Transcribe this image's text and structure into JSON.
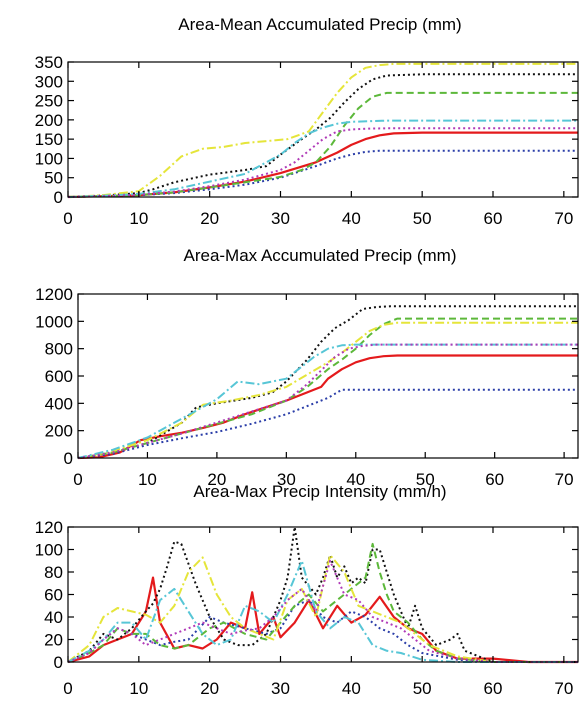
{
  "chart_data": [
    {
      "type": "line",
      "title": "Area-Mean Accumulated Precip (mm)",
      "xlabel": "",
      "ylabel": "",
      "xlim": [
        0,
        72
      ],
      "ylim": [
        0,
        350
      ],
      "xticks": [
        0,
        10,
        20,
        30,
        40,
        50,
        60,
        70
      ],
      "yticks": [
        0,
        50,
        100,
        150,
        200,
        250,
        300,
        350
      ],
      "grid": false,
      "series": [
        {
          "color": "#e41a1c",
          "dash": "solid",
          "x": [
            0,
            5,
            10,
            15,
            20,
            25,
            30,
            35,
            38,
            40,
            42,
            44,
            46,
            50,
            55,
            60,
            65,
            72
          ],
          "y": [
            0,
            2,
            5,
            12,
            25,
            40,
            62,
            90,
            115,
            135,
            150,
            160,
            165,
            167,
            167,
            167,
            167,
            167
          ]
        },
        {
          "color": "#2b3ea8",
          "dash": "dot",
          "x": [
            0,
            5,
            10,
            15,
            20,
            25,
            30,
            35,
            38,
            40,
            42,
            44,
            46,
            50,
            60,
            72
          ],
          "y": [
            0,
            2,
            5,
            10,
            20,
            32,
            50,
            80,
            100,
            110,
            117,
            120,
            120,
            120,
            120,
            120
          ]
        },
        {
          "color": "#111111",
          "dash": "dot",
          "x": [
            0,
            5,
            10,
            12,
            15,
            20,
            25,
            28,
            30,
            33,
            35,
            37,
            39,
            41,
            43,
            45,
            50,
            60,
            72
          ],
          "y": [
            0,
            4,
            10,
            20,
            38,
            58,
            70,
            80,
            110,
            150,
            175,
            205,
            245,
            280,
            305,
            315,
            318,
            318,
            318
          ]
        },
        {
          "color": "#5cb83a",
          "dash": "dash",
          "x": [
            0,
            5,
            10,
            15,
            20,
            25,
            30,
            33,
            35,
            37,
            39,
            41,
            43,
            45,
            47,
            50,
            60,
            72
          ],
          "y": [
            0,
            2,
            5,
            12,
            25,
            38,
            52,
            70,
            90,
            130,
            185,
            230,
            260,
            270,
            270,
            270,
            270,
            270
          ]
        },
        {
          "color": "#e5e53a",
          "dash": "dashdot",
          "x": [
            0,
            5,
            10,
            13,
            16,
            19,
            22,
            25,
            28,
            31,
            34,
            36,
            38,
            40,
            42,
            44,
            46,
            50,
            60,
            72
          ],
          "y": [
            0,
            5,
            15,
            55,
            105,
            125,
            130,
            140,
            145,
            150,
            170,
            220,
            270,
            310,
            335,
            342,
            345,
            345,
            345,
            345
          ]
        },
        {
          "color": "#57c6d6",
          "dash": "dashdot",
          "x": [
            0,
            5,
            10,
            15,
            20,
            25,
            28,
            30,
            32,
            34,
            36,
            38,
            40,
            45,
            50,
            60,
            72
          ],
          "y": [
            0,
            3,
            8,
            20,
            40,
            60,
            90,
            110,
            140,
            165,
            180,
            190,
            195,
            198,
            198,
            198,
            198
          ]
        },
        {
          "color": "#b03ab8",
          "dash": "dot",
          "x": [
            0,
            5,
            10,
            15,
            20,
            25,
            30,
            32,
            34,
            36,
            38,
            40,
            42,
            45,
            50,
            60,
            72
          ],
          "y": [
            0,
            2,
            6,
            14,
            28,
            45,
            70,
            90,
            120,
            150,
            170,
            175,
            177,
            178,
            178,
            178,
            178
          ]
        }
      ]
    },
    {
      "type": "line",
      "title": "Area-Max Accumulated Precip (mm)",
      "xlabel": "",
      "ylabel": "",
      "xlim": [
        0,
        72
      ],
      "ylim": [
        0,
        1200
      ],
      "xticks": [
        0,
        10,
        20,
        30,
        40,
        50,
        60,
        70
      ],
      "yticks": [
        0,
        200,
        400,
        600,
        800,
        1000,
        1200
      ],
      "grid": false,
      "series": [
        {
          "color": "#e41a1c",
          "dash": "solid",
          "x": [
            0,
            3,
            6,
            9,
            12,
            15,
            18,
            21,
            24,
            27,
            30,
            33,
            35,
            36,
            38,
            40,
            42,
            44,
            46,
            50,
            60,
            72
          ],
          "y": [
            0,
            5,
            40,
            130,
            160,
            185,
            220,
            260,
            320,
            370,
            420,
            480,
            520,
            580,
            650,
            700,
            730,
            745,
            750,
            750,
            750,
            750
          ]
        },
        {
          "color": "#2b3ea8",
          "dash": "dot",
          "x": [
            0,
            5,
            10,
            15,
            20,
            25,
            30,
            33,
            36,
            38,
            40,
            50,
            60,
            72
          ],
          "y": [
            0,
            30,
            95,
            145,
            190,
            250,
            320,
            380,
            440,
            500,
            500,
            500,
            500,
            500
          ]
        },
        {
          "color": "#111111",
          "dash": "dot",
          "x": [
            0,
            5,
            10,
            15,
            17,
            20,
            25,
            28,
            30,
            33,
            35,
            37,
            39,
            41,
            43,
            45,
            50,
            60,
            72
          ],
          "y": [
            0,
            40,
            110,
            260,
            370,
            400,
            440,
            480,
            560,
            720,
            850,
            950,
            1010,
            1090,
            1105,
            1110,
            1110,
            1110,
            1110
          ]
        },
        {
          "color": "#5cb83a",
          "dash": "dash",
          "x": [
            0,
            5,
            10,
            15,
            20,
            25,
            30,
            33,
            36,
            38,
            40,
            42,
            44,
            46,
            50,
            60,
            72
          ],
          "y": [
            0,
            40,
            110,
            180,
            250,
            320,
            420,
            520,
            650,
            720,
            800,
            900,
            980,
            1020,
            1020,
            1020,
            1020
          ]
        },
        {
          "color": "#e5e53a",
          "dash": "dashdot",
          "x": [
            0,
            5,
            10,
            15,
            18,
            22,
            26,
            30,
            34,
            36,
            38,
            40,
            42,
            44,
            46,
            50,
            60,
            72
          ],
          "y": [
            0,
            50,
            130,
            260,
            390,
            420,
            460,
            520,
            640,
            700,
            770,
            850,
            930,
            975,
            990,
            990,
            990,
            990
          ]
        },
        {
          "color": "#57c6d6",
          "dash": "dashdot",
          "x": [
            0,
            5,
            10,
            15,
            20,
            23,
            26,
            30,
            32,
            34,
            36,
            38,
            40,
            50,
            60,
            72
          ],
          "y": [
            0,
            60,
            150,
            290,
            430,
            560,
            540,
            580,
            660,
            740,
            800,
            825,
            830,
            830,
            830,
            830
          ]
        },
        {
          "color": "#b03ab8",
          "dash": "dot",
          "x": [
            0,
            5,
            10,
            15,
            20,
            25,
            30,
            33,
            35,
            37,
            39,
            41,
            43,
            50,
            60,
            72
          ],
          "y": [
            0,
            40,
            110,
            180,
            260,
            340,
            420,
            540,
            640,
            740,
            800,
            820,
            830,
            830,
            830,
            830
          ]
        }
      ]
    },
    {
      "type": "line",
      "title": "Area-Max Precip Intensity (mm/h)",
      "xlabel": "",
      "ylabel": "",
      "xlim": [
        0,
        72
      ],
      "ylim": [
        0,
        120
      ],
      "xticks": [
        0,
        10,
        20,
        30,
        40,
        50,
        60,
        70
      ],
      "yticks": [
        0,
        20,
        40,
        60,
        80,
        100,
        120
      ],
      "grid": false,
      "series": [
        {
          "color": "#e41a1c",
          "dash": "solid",
          "x": [
            0,
            3,
            5,
            7,
            9,
            11,
            12,
            13,
            15,
            17,
            19,
            21,
            23,
            25,
            26,
            27,
            29,
            30,
            32,
            34,
            36,
            38,
            40,
            42,
            44,
            46,
            48,
            50,
            52,
            55,
            60,
            65,
            72
          ],
          "y": [
            0,
            5,
            15,
            20,
            25,
            45,
            75,
            35,
            12,
            15,
            12,
            20,
            35,
            30,
            62,
            25,
            40,
            22,
            35,
            55,
            30,
            50,
            35,
            42,
            58,
            40,
            30,
            25,
            10,
            3,
            3,
            0,
            0
          ]
        },
        {
          "color": "#2b3ea8",
          "dash": "dot",
          "x": [
            0,
            3,
            5,
            7,
            9,
            11,
            13,
            15,
            17,
            20,
            22,
            25,
            28,
            30,
            32,
            34,
            36,
            38,
            40,
            42,
            44,
            46,
            48,
            50,
            55,
            60,
            65,
            72
          ],
          "y": [
            0,
            8,
            20,
            30,
            25,
            20,
            15,
            18,
            20,
            40,
            35,
            30,
            25,
            30,
            50,
            55,
            40,
            35,
            45,
            40,
            30,
            25,
            15,
            8,
            2,
            0,
            0,
            0
          ]
        },
        {
          "color": "#111111",
          "dash": "dot",
          "x": [
            0,
            3,
            5,
            7,
            9,
            11,
            12,
            13,
            14,
            15,
            16,
            18,
            20,
            22,
            24,
            26,
            28,
            30,
            31,
            32,
            33,
            35,
            36,
            37,
            38,
            39,
            40,
            41,
            42,
            43,
            44,
            46,
            48,
            49,
            50,
            52,
            54,
            55,
            56,
            58,
            60,
            65,
            72
          ],
          "y": [
            0,
            10,
            25,
            20,
            30,
            45,
            52,
            65,
            85,
            107,
            105,
            70,
            40,
            20,
            15,
            15,
            25,
            55,
            75,
            120,
            75,
            60,
            75,
            95,
            75,
            85,
            70,
            75,
            70,
            100,
            100,
            60,
            30,
            50,
            30,
            15,
            20,
            25,
            10,
            5,
            0,
            0,
            0
          ]
        },
        {
          "color": "#5cb83a",
          "dash": "dash",
          "x": [
            0,
            3,
            5,
            7,
            9,
            11,
            13,
            15,
            17,
            20,
            22,
            25,
            28,
            30,
            32,
            34,
            36,
            38,
            40,
            42,
            43,
            44,
            45,
            46,
            48,
            50,
            52,
            55,
            60,
            65,
            72
          ],
          "y": [
            0,
            8,
            15,
            30,
            25,
            25,
            15,
            12,
            15,
            30,
            35,
            25,
            20,
            35,
            50,
            60,
            45,
            55,
            65,
            75,
            105,
            80,
            60,
            45,
            35,
            20,
            10,
            3,
            0,
            0,
            0
          ]
        },
        {
          "color": "#e5e53a",
          "dash": "dashdot",
          "x": [
            0,
            3,
            5,
            7,
            9,
            11,
            13,
            15,
            17,
            19,
            21,
            23,
            25,
            27,
            29,
            31,
            33,
            35,
            37,
            39,
            41,
            43,
            45,
            47,
            49,
            51,
            55,
            60,
            65,
            72
          ],
          "y": [
            0,
            15,
            40,
            48,
            45,
            42,
            35,
            50,
            80,
            93,
            60,
            40,
            30,
            25,
            20,
            55,
            65,
            40,
            95,
            80,
            50,
            45,
            40,
            35,
            25,
            15,
            5,
            0,
            0,
            0
          ]
        },
        {
          "color": "#57c6d6",
          "dash": "dashdot",
          "x": [
            0,
            3,
            5,
            7,
            9,
            11,
            13,
            15,
            17,
            19,
            21,
            23,
            25,
            27,
            29,
            31,
            33,
            35,
            37,
            39,
            41,
            43,
            45,
            47,
            50,
            55,
            60,
            65,
            72
          ],
          "y": [
            0,
            10,
            20,
            35,
            35,
            20,
            55,
            65,
            45,
            25,
            15,
            20,
            50,
            45,
            35,
            60,
            90,
            45,
            30,
            40,
            35,
            15,
            10,
            8,
            2,
            0,
            0,
            0,
            0
          ]
        },
        {
          "color": "#b03ab8",
          "dash": "dot",
          "x": [
            0,
            3,
            5,
            7,
            9,
            11,
            13,
            15,
            17,
            19,
            21,
            23,
            25,
            27,
            29,
            31,
            33,
            35,
            37,
            39,
            41,
            43,
            45,
            47,
            49,
            51,
            55,
            60,
            65,
            72
          ],
          "y": [
            0,
            8,
            20,
            30,
            25,
            15,
            20,
            25,
            30,
            35,
            30,
            25,
            28,
            30,
            40,
            55,
            65,
            45,
            90,
            60,
            55,
            40,
            35,
            30,
            20,
            10,
            3,
            0,
            0,
            0
          ]
        }
      ]
    }
  ]
}
